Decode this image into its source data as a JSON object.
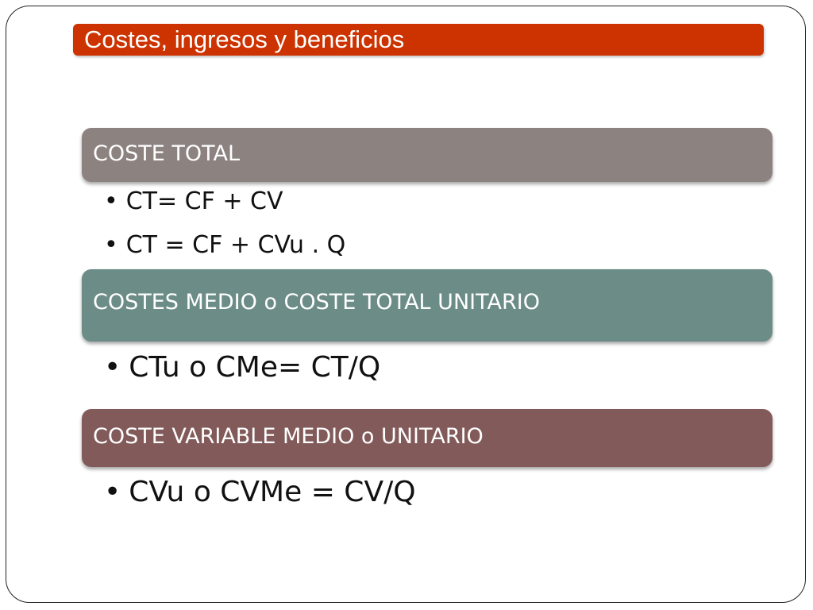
{
  "slide": {
    "title": "Costes, ingresos y beneficios",
    "sections": [
      {
        "header": "COSTE TOTAL",
        "bullets": [
          "CT= CF + CV",
          "CT = CF + CVu . Q"
        ]
      },
      {
        "header": "COSTES MEDIO o COSTE TOTAL UNITARIO",
        "bullets": [
          "CTu o CMe= CT/Q"
        ]
      },
      {
        "header": "COSTE VARIABLE MEDIO o UNITARIO",
        "bullets": [
          "CVu o CVMe = CV/Q"
        ]
      }
    ],
    "bullet_symbol": "•"
  },
  "colors": {
    "title_bar": "#cc3300",
    "section_1": "#8c8280",
    "section_2": "#6c8c87",
    "section_3": "#825a5a"
  }
}
